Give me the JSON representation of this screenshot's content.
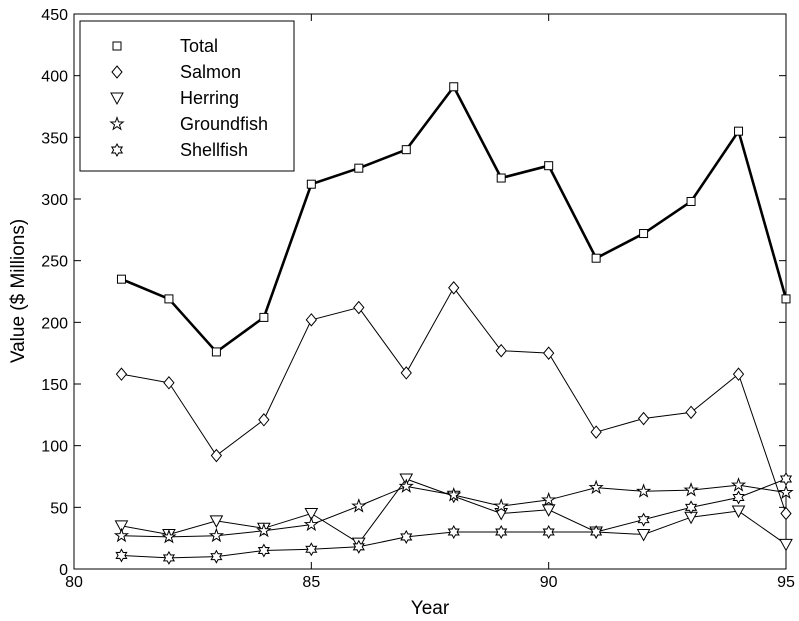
{
  "chart_data": {
    "type": "line",
    "title": "",
    "xlabel": "Year",
    "ylabel": "Value ($ Millions)",
    "xlim": [
      80,
      95
    ],
    "ylim": [
      0,
      450
    ],
    "xticks": [
      "80",
      "85",
      "90",
      "95"
    ],
    "yticks": [
      "0",
      "50",
      "100",
      "150",
      "200",
      "250",
      "300",
      "350",
      "400",
      "450"
    ],
    "legend_position": "top-left",
    "grid": false,
    "x": [
      81,
      82,
      83,
      84,
      85,
      86,
      87,
      88,
      89,
      90,
      91,
      92,
      93,
      94,
      95
    ],
    "series": [
      {
        "name": "Total",
        "marker": "square",
        "bold": true,
        "values": [
          235,
          219,
          176,
          204,
          312,
          325,
          340,
          391,
          317,
          327,
          252,
          272,
          298,
          355,
          219
        ]
      },
      {
        "name": "Salmon",
        "marker": "diamond",
        "bold": false,
        "values": [
          158,
          151,
          92,
          121,
          202,
          212,
          159,
          228,
          177,
          175,
          111,
          122,
          127,
          158,
          45
        ]
      },
      {
        "name": "Herring",
        "marker": "triangle-down",
        "bold": false,
        "values": [
          35,
          28,
          39,
          33,
          45,
          21,
          73,
          59,
          45,
          48,
          30,
          28,
          42,
          47,
          20
        ]
      },
      {
        "name": "Groundfish",
        "marker": "star",
        "bold": false,
        "values": [
          27,
          26,
          27,
          31,
          36,
          51,
          67,
          60,
          51,
          56,
          66,
          63,
          64,
          68,
          62
        ]
      },
      {
        "name": "Shellfish",
        "marker": "hexagram",
        "bold": false,
        "values": [
          11,
          9,
          10,
          15,
          16,
          18,
          26,
          30,
          30,
          30,
          30,
          40,
          50,
          58,
          73
        ]
      }
    ]
  }
}
